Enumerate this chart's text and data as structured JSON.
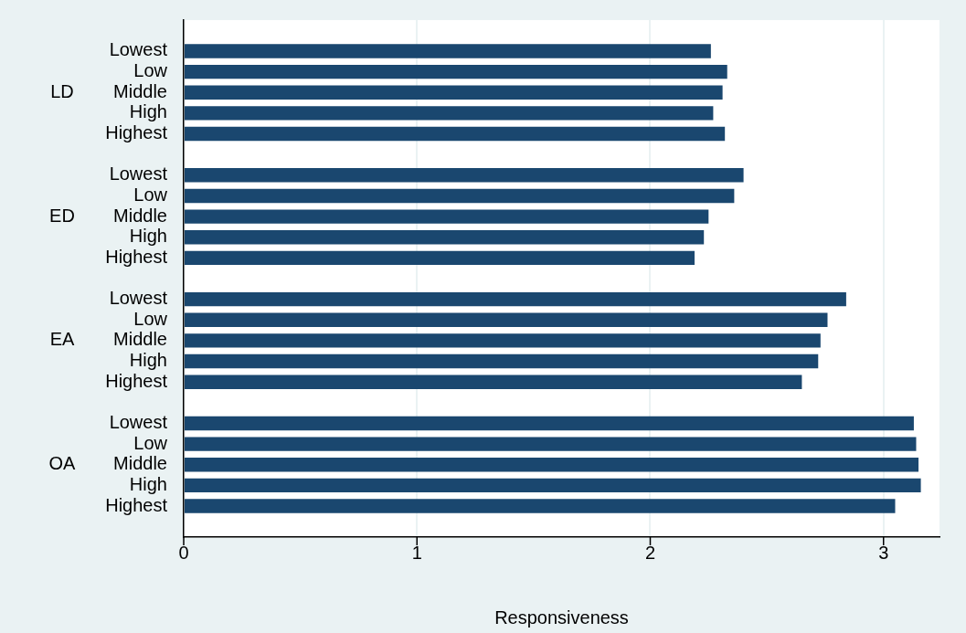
{
  "chart_data": {
    "type": "bar",
    "orientation": "horizontal",
    "xlabel": "Responsiveness",
    "categories": [
      null,
      "Lowest",
      "Low",
      "Middle",
      "High",
      "Highest",
      null,
      "Lowest",
      "Low",
      "Middle",
      "High",
      "Highest",
      null,
      "Lowest",
      "Low",
      "Middle",
      "High",
      "Highest",
      null,
      "Lowest",
      "Low",
      "Middle",
      "High",
      "Highest",
      null
    ],
    "values": [
      null,
      2.26,
      2.33,
      2.31,
      2.27,
      2.32,
      null,
      2.4,
      2.36,
      2.25,
      2.23,
      2.19,
      null,
      2.84,
      2.76,
      2.73,
      2.72,
      2.65,
      null,
      3.13,
      3.14,
      3.15,
      3.16,
      3.05,
      null
    ],
    "color": "#1a476f",
    "annotations": [
      "LD",
      "ED",
      "EA",
      "OA"
    ],
    "xlim": [
      0,
      3.24
    ],
    "xticks": [
      0,
      1,
      2,
      3
    ],
    "grid": "x"
  }
}
